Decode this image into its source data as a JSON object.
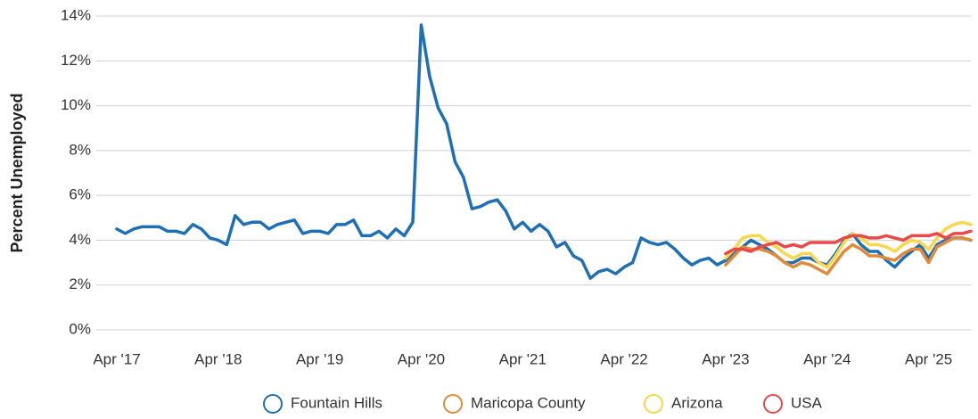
{
  "chart_data": {
    "type": "line",
    "y_label": "Percent Unemployed",
    "categories": [
      "Apr '17",
      null,
      null,
      null,
      null,
      null,
      null,
      null,
      null,
      null,
      null,
      null,
      "Apr '18",
      null,
      null,
      null,
      null,
      null,
      null,
      null,
      null,
      null,
      null,
      null,
      "Apr '19",
      null,
      null,
      null,
      null,
      null,
      null,
      null,
      null,
      null,
      null,
      null,
      "Apr '20",
      null,
      null,
      null,
      null,
      null,
      null,
      null,
      null,
      null,
      null,
      null,
      "Apr '21",
      null,
      null,
      null,
      null,
      null,
      null,
      null,
      null,
      null,
      null,
      null,
      "Apr '22",
      null,
      null,
      null,
      null,
      null,
      null,
      null,
      null,
      null,
      null,
      null,
      "Apr '23",
      null,
      null,
      null,
      null,
      null,
      null,
      null,
      null,
      null,
      null,
      null,
      "Apr '24",
      null,
      null,
      null,
      null,
      null,
      null,
      null,
      null,
      null,
      null,
      null,
      "Apr '25",
      null,
      null,
      null,
      null,
      null
    ],
    "series": [
      {
        "name": "Fountain Hills",
        "color": "#1f6fb5",
        "values": [
          4.5,
          4.3,
          4.5,
          4.6,
          4.6,
          4.6,
          4.4,
          4.4,
          4.3,
          4.7,
          4.5,
          4.1,
          4.0,
          3.8,
          5.1,
          4.7,
          4.8,
          4.8,
          4.5,
          4.7,
          4.8,
          4.9,
          4.3,
          4.4,
          4.4,
          4.3,
          4.7,
          4.7,
          4.9,
          4.2,
          4.2,
          4.4,
          4.1,
          4.5,
          4.2,
          4.8,
          13.6,
          11.3,
          9.9,
          9.2,
          7.5,
          6.8,
          5.4,
          5.5,
          5.7,
          5.8,
          5.3,
          4.5,
          4.8,
          4.4,
          4.7,
          4.4,
          3.7,
          3.9,
          3.3,
          3.1,
          2.3,
          2.6,
          2.7,
          2.5,
          2.8,
          3.0,
          4.1,
          3.9,
          3.8,
          3.9,
          3.6,
          3.2,
          2.9,
          3.1,
          3.2,
          2.9,
          3.1,
          3.4,
          3.7,
          4.0,
          3.8,
          3.6,
          3.3,
          3.0,
          3.0,
          3.2,
          3.2,
          3.0,
          2.9,
          3.4,
          4.0,
          4.3,
          3.8,
          3.5,
          3.5,
          3.1,
          2.8,
          3.2,
          3.5,
          3.8,
          3.2,
          3.8,
          4.0,
          4.1,
          4.1,
          4.0
        ]
      },
      {
        "name": "Maricopa County",
        "color": "#e08a3c",
        "values": [
          null,
          null,
          null,
          null,
          null,
          null,
          null,
          null,
          null,
          null,
          null,
          null,
          null,
          null,
          null,
          null,
          null,
          null,
          null,
          null,
          null,
          null,
          null,
          null,
          null,
          null,
          null,
          null,
          null,
          null,
          null,
          null,
          null,
          null,
          null,
          null,
          null,
          null,
          null,
          null,
          null,
          null,
          null,
          null,
          null,
          null,
          null,
          null,
          null,
          null,
          null,
          null,
          null,
          null,
          null,
          null,
          null,
          null,
          null,
          null,
          null,
          null,
          null,
          null,
          null,
          null,
          null,
          null,
          null,
          null,
          null,
          null,
          2.9,
          3.3,
          3.7,
          3.6,
          3.6,
          3.5,
          3.3,
          3.0,
          2.8,
          3.0,
          2.9,
          2.7,
          2.5,
          3.0,
          3.5,
          3.8,
          3.6,
          3.3,
          3.3,
          3.2,
          3.1,
          3.4,
          3.6,
          3.6,
          3.0,
          3.7,
          3.9,
          4.1,
          4.1,
          4.0
        ]
      },
      {
        "name": "Arizona",
        "color": "#f9d64a",
        "values": [
          null,
          null,
          null,
          null,
          null,
          null,
          null,
          null,
          null,
          null,
          null,
          null,
          null,
          null,
          null,
          null,
          null,
          null,
          null,
          null,
          null,
          null,
          null,
          null,
          null,
          null,
          null,
          null,
          null,
          null,
          null,
          null,
          null,
          null,
          null,
          null,
          null,
          null,
          null,
          null,
          null,
          null,
          null,
          null,
          null,
          null,
          null,
          null,
          null,
          null,
          null,
          null,
          null,
          null,
          null,
          null,
          null,
          null,
          null,
          null,
          null,
          null,
          null,
          null,
          null,
          null,
          null,
          null,
          null,
          null,
          null,
          null,
          3.2,
          3.6,
          4.1,
          4.2,
          4.2,
          3.9,
          3.7,
          3.4,
          3.2,
          3.4,
          3.4,
          3.0,
          2.8,
          3.3,
          3.9,
          4.3,
          4.1,
          3.8,
          3.8,
          3.7,
          3.5,
          3.8,
          4.0,
          3.9,
          3.6,
          4.1,
          4.5,
          4.7,
          4.8,
          4.7
        ]
      },
      {
        "name": "USA",
        "color": "#e84a4a",
        "values": [
          null,
          null,
          null,
          null,
          null,
          null,
          null,
          null,
          null,
          null,
          null,
          null,
          null,
          null,
          null,
          null,
          null,
          null,
          null,
          null,
          null,
          null,
          null,
          null,
          null,
          null,
          null,
          null,
          null,
          null,
          null,
          null,
          null,
          null,
          null,
          null,
          null,
          null,
          null,
          null,
          null,
          null,
          null,
          null,
          null,
          null,
          null,
          null,
          null,
          null,
          null,
          null,
          null,
          null,
          null,
          null,
          null,
          null,
          null,
          null,
          null,
          null,
          null,
          null,
          null,
          null,
          null,
          null,
          null,
          null,
          null,
          null,
          3.4,
          3.6,
          3.6,
          3.5,
          3.7,
          3.8,
          3.9,
          3.7,
          3.8,
          3.7,
          3.9,
          3.9,
          3.9,
          3.9,
          4.1,
          4.2,
          4.2,
          4.1,
          4.1,
          4.2,
          4.1,
          4.0,
          4.2,
          4.2,
          4.2,
          4.3,
          4.1,
          4.3,
          4.3,
          4.4
        ]
      }
    ],
    "ylim": [
      0,
      14
    ],
    "yticks": [
      {
        "value": 0,
        "label": "0%"
      },
      {
        "value": 2,
        "label": "2%"
      },
      {
        "value": 4,
        "label": "4%"
      },
      {
        "value": 6,
        "label": "6%"
      },
      {
        "value": 8,
        "label": "8%"
      },
      {
        "value": 10,
        "label": "10%"
      },
      {
        "value": 12,
        "label": "12%"
      },
      {
        "value": 14,
        "label": "14%"
      }
    ],
    "grid": true,
    "legend": "bottom"
  }
}
